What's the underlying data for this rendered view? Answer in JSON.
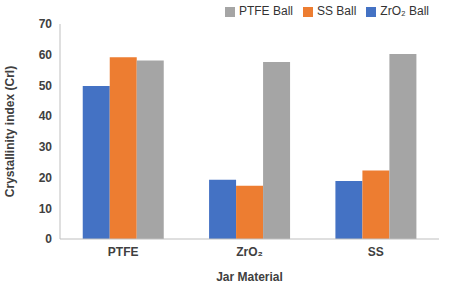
{
  "chart_data": {
    "type": "bar",
    "x_label": "Jar Material",
    "y_label": "Crystallinity index (CrI)",
    "categories": [
      "PTFE",
      "ZrO₂",
      "SS"
    ],
    "series": [
      {
        "name": "ZrO₂ Ball",
        "color": "#4472c4",
        "values": [
          49.8,
          19.3,
          18.9
        ]
      },
      {
        "name": "SS Ball",
        "color": "#ed7d31",
        "values": [
          59.2,
          17.3,
          22.3
        ]
      },
      {
        "name": "PTFE Ball",
        "color": "#a5a5a5",
        "values": [
          58.1,
          57.6,
          60.2
        ]
      }
    ],
    "ylim": [
      0,
      70
    ],
    "yticks": [
      0,
      10,
      20,
      30,
      40,
      50,
      60,
      70
    ],
    "grid": false,
    "legend": "top right"
  }
}
